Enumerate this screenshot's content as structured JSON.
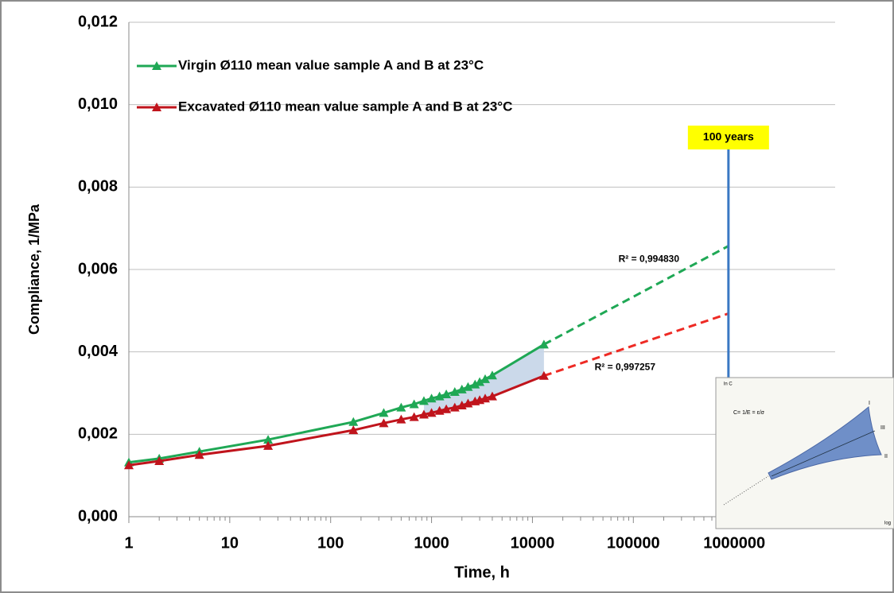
{
  "chart_data": {
    "type": "line",
    "x_label": "Time, h",
    "y_label": "Compliance, 1/MPa",
    "x": [
      1,
      2,
      5,
      24,
      168,
      336,
      500,
      672,
      840,
      1000,
      1200,
      1400,
      1700,
      2000,
      2300,
      2700,
      3000,
      3400,
      4000,
      13000
    ],
    "series": [
      {
        "name": "Virgin Ø110 mean value sample A and B at 23°C",
        "color": "#1fa855",
        "values": [
          0.00132,
          0.00141,
          0.00158,
          0.00187,
          0.0023,
          0.00252,
          0.00265,
          0.00273,
          0.00281,
          0.00287,
          0.00292,
          0.00297,
          0.00303,
          0.00309,
          0.00315,
          0.00321,
          0.00327,
          0.00334,
          0.00343,
          0.00418
        ]
      },
      {
        "name": "Excavated Ø110 mean value sample A and B at 23°C",
        "color": "#c0141c",
        "values": [
          0.00125,
          0.00135,
          0.0015,
          0.00172,
          0.0021,
          0.00227,
          0.00236,
          0.00242,
          0.00248,
          0.00252,
          0.00257,
          0.00261,
          0.00265,
          0.0027,
          0.00275,
          0.0028,
          0.00283,
          0.00287,
          0.00292,
          0.00342
        ]
      }
    ],
    "trendlines": [
      {
        "color": "#1fa855",
        "x": [
          13000,
          876000
        ],
        "values": [
          0.00418,
          0.00657
        ],
        "label": "R² = 0,994830"
      },
      {
        "color": "#ee2a24",
        "x": [
          13000,
          876000
        ],
        "values": [
          0.00342,
          0.00493
        ],
        "label": "R² = 0,997257"
      }
    ],
    "shaded_color": "#c5d5e8",
    "vline": {
      "x": 876000,
      "label": "100 years",
      "color": "#3a78c3",
      "label_color": "#ffff00"
    },
    "xscale": "log",
    "xlim": [
      1,
      10000000
    ],
    "xticks": [
      1,
      10,
      100,
      1000,
      10000,
      100000,
      1000000
    ],
    "minor_ticks": true,
    "ylim": [
      0,
      0.012
    ],
    "yticks": [
      {
        "value": 0,
        "label": "0,000"
      },
      {
        "value": 0.002,
        "label": "0,002"
      },
      {
        "value": 0.004,
        "label": "0,004"
      },
      {
        "value": 0.006,
        "label": "0,006"
      },
      {
        "value": 0.008,
        "label": "0,008"
      },
      {
        "value": 0.01,
        "label": "0,010"
      },
      {
        "value": 0.012,
        "label": "0,012"
      }
    ],
    "grid": true,
    "legend": "upper left",
    "inset": {
      "y_label": "ln C",
      "formula": "C= 1/E = ε/σ",
      "labels": [
        "I",
        "III",
        "II"
      ],
      "x_label": "log"
    }
  }
}
